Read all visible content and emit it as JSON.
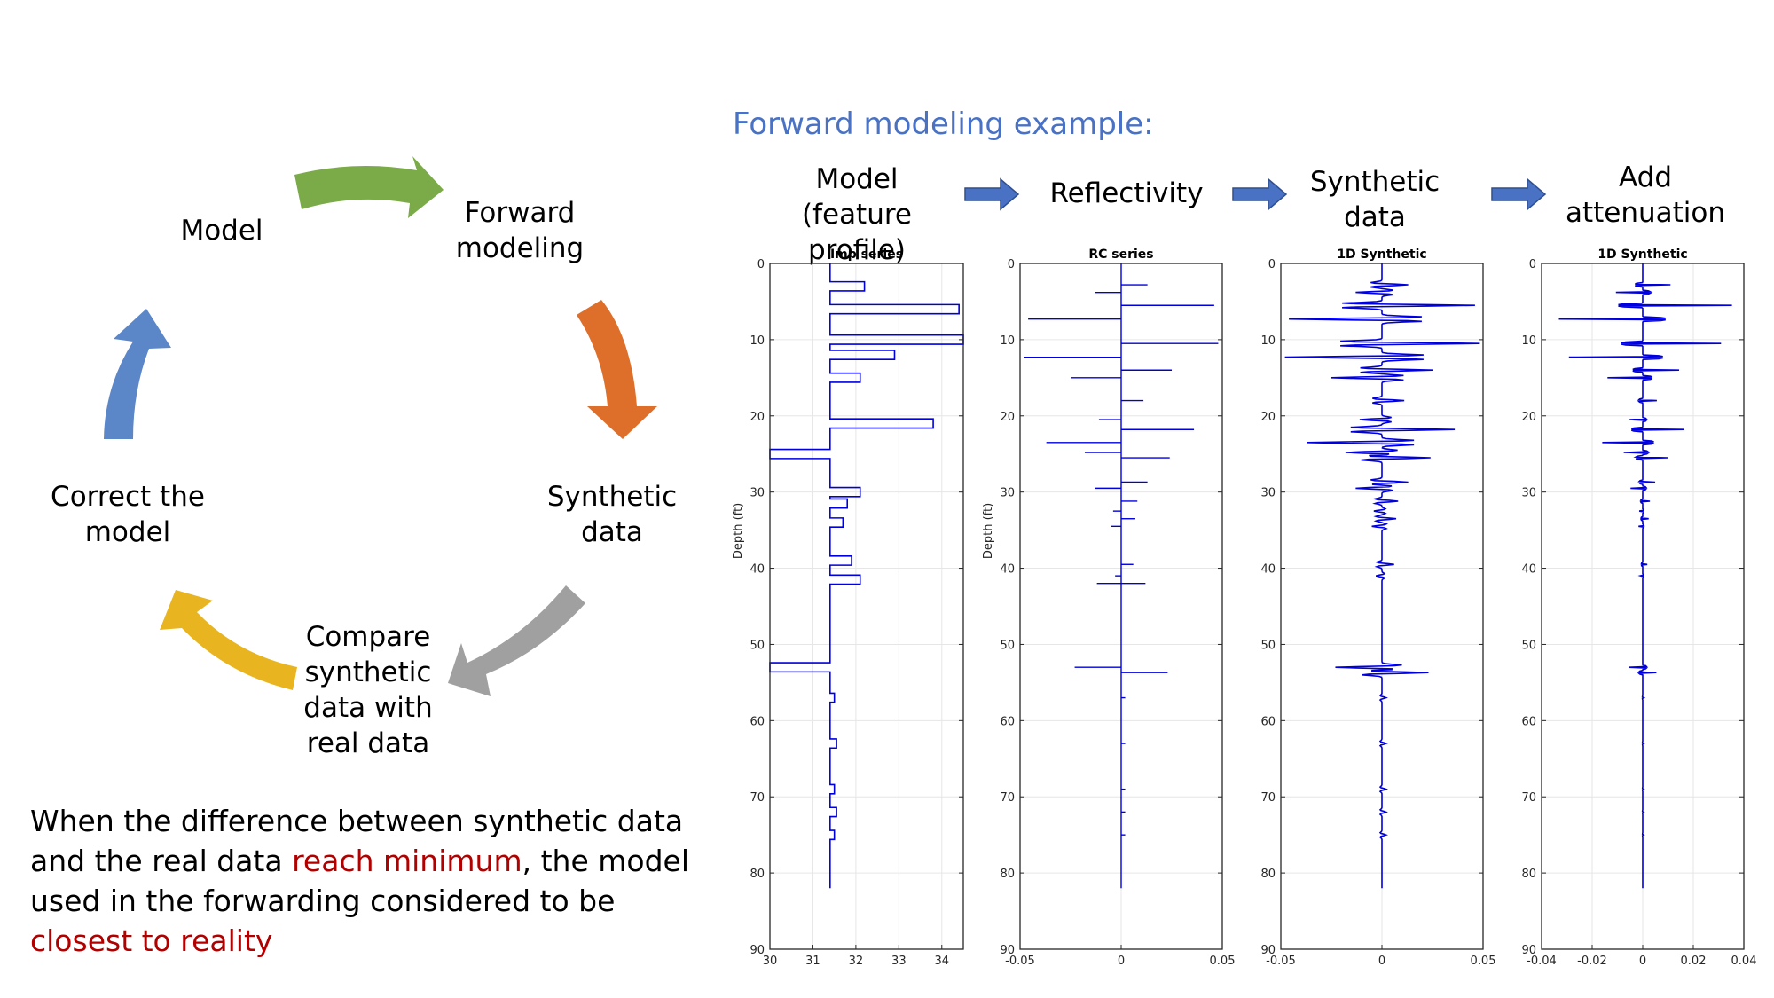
{
  "cycle": {
    "nodes": [
      {
        "id": "model",
        "label": "Model"
      },
      {
        "id": "forward",
        "label": "Forward\nmodeling"
      },
      {
        "id": "synthetic",
        "label": "Synthetic\ndata"
      },
      {
        "id": "compare",
        "label": "Compare\nsynthetic\ndata with\nreal data"
      },
      {
        "id": "correct",
        "label": "Correct the\nmodel"
      }
    ],
    "arrow_colors": {
      "green": "#7aab48",
      "orange": "#dd6f2a",
      "gray": "#a0a0a0",
      "yellow": "#e8b520",
      "blue": "#5b87c8"
    }
  },
  "conclusion": {
    "parts": [
      {
        "text": "When the difference between synthetic data and the real data ",
        "highlight": false
      },
      {
        "text": "reach minimum",
        "highlight": true
      },
      {
        "text": ", the model used in the forwarding considered to be ",
        "highlight": false
      },
      {
        "text": "closest to reality",
        "highlight": true
      }
    ],
    "highlight_color": "#b00000"
  },
  "forward_example": {
    "title": "Forward modeling example:",
    "steps": [
      {
        "label": "Model\n(feature profile)"
      },
      {
        "label": "Reflectivity"
      },
      {
        "label": "Synthetic\ndata"
      },
      {
        "label": "Add\nattenuation"
      }
    ],
    "step_arrow_color": "#4a72c4"
  },
  "chart_data": [
    {
      "type": "line",
      "title": "Imp series",
      "ylabel": "Depth (ft)",
      "xlabel": "",
      "xlim": [
        30,
        34.5
      ],
      "ylim": [
        0,
        90
      ],
      "y_reversed": true,
      "xticks": [
        "30",
        "31",
        "32",
        "33",
        "34"
      ],
      "xtick_values": [
        30,
        31,
        32,
        33,
        34
      ],
      "yticks": [
        "0",
        "10",
        "20",
        "30",
        "40",
        "50",
        "60",
        "70",
        "80",
        "90"
      ],
      "grid": true,
      "series": [
        {
          "style": "step-impedance",
          "color": "#0000dd",
          "baseline": 31.4,
          "events": [
            [
              3,
              32.2
            ],
            [
              6,
              34.4
            ],
            [
              10,
              34.5
            ],
            [
              12,
              32.9
            ],
            [
              15,
              32.1
            ],
            [
              21,
              33.8
            ],
            [
              25,
              30.0
            ],
            [
              30,
              32.1
            ],
            [
              31.5,
              31.8
            ],
            [
              34,
              31.7
            ],
            [
              39,
              31.9
            ],
            [
              41.5,
              32.1
            ],
            [
              53,
              30.0
            ],
            [
              57,
              31.5
            ],
            [
              63,
              31.55
            ],
            [
              69,
              31.5
            ],
            [
              72,
              31.55
            ],
            [
              75,
              31.5
            ]
          ],
          "y_end": 82
        }
      ]
    },
    {
      "type": "line",
      "title": "RC series",
      "ylabel": "Depth (ft)",
      "xlabel": "",
      "xlim": [
        -0.05,
        0.05
      ],
      "ylim": [
        0,
        90
      ],
      "y_reversed": true,
      "xticks": [
        "-0.05",
        "0",
        "0.05"
      ],
      "xtick_values": [
        -0.05,
        0,
        0.05
      ],
      "yticks": [
        "0",
        "10",
        "20",
        "30",
        "40",
        "50",
        "60",
        "70",
        "80",
        "90"
      ],
      "grid": true,
      "series": [
        {
          "style": "spikes",
          "color": "#0000dd",
          "spikes": [
            [
              2.8,
              0.013
            ],
            [
              3.8,
              -0.013
            ],
            [
              5.5,
              0.046
            ],
            [
              7.3,
              -0.046
            ],
            [
              10.5,
              0.048
            ],
            [
              12.3,
              -0.048
            ],
            [
              14,
              0.025
            ],
            [
              15,
              -0.025
            ],
            [
              18,
              0.011
            ],
            [
              20.5,
              -0.011
            ],
            [
              21.8,
              0.036
            ],
            [
              23.5,
              -0.037
            ],
            [
              24.8,
              -0.018
            ],
            [
              25.5,
              0.024
            ],
            [
              28.7,
              0.013
            ],
            [
              29.5,
              -0.013
            ],
            [
              31.2,
              0.008
            ],
            [
              32.5,
              -0.004
            ],
            [
              33.5,
              0.007
            ],
            [
              34.5,
              -0.005
            ],
            [
              39.5,
              0.006
            ],
            [
              41,
              -0.003
            ],
            [
              42,
              -0.012
            ],
            [
              42,
              0.012
            ],
            [
              53,
              -0.023
            ],
            [
              53.7,
              0.023
            ],
            [
              57,
              0.002
            ],
            [
              63,
              0.002
            ],
            [
              69,
              0.002
            ],
            [
              72,
              0.002
            ],
            [
              75,
              0.002
            ]
          ],
          "y_end": 82
        }
      ]
    },
    {
      "type": "line",
      "title": "1D Synthetic",
      "ylabel": "",
      "xlabel": "",
      "xlim": [
        -0.05,
        0.05
      ],
      "ylim": [
        0,
        90
      ],
      "y_reversed": true,
      "xticks": [
        "-0.05",
        "0",
        "0.05"
      ],
      "xtick_values": [
        -0.05,
        0,
        0.05
      ],
      "yticks": [
        "0",
        "10",
        "20",
        "30",
        "40",
        "50",
        "60",
        "70",
        "80",
        "90"
      ],
      "grid": true,
      "series": [
        {
          "style": "wiggle",
          "color": "#0000dd",
          "width": 0.7,
          "spikes": [
            [
              2.8,
              0.013
            ],
            [
              3.8,
              -0.013
            ],
            [
              5.5,
              0.046
            ],
            [
              7.3,
              -0.046
            ],
            [
              10.5,
              0.048
            ],
            [
              12.3,
              -0.048
            ],
            [
              14,
              0.025
            ],
            [
              15,
              -0.025
            ],
            [
              18,
              0.011
            ],
            [
              20.5,
              -0.011
            ],
            [
              21.8,
              0.036
            ],
            [
              23.5,
              -0.037
            ],
            [
              24.8,
              -0.018
            ],
            [
              25.5,
              0.024
            ],
            [
              28.7,
              0.013
            ],
            [
              29.5,
              -0.013
            ],
            [
              31.2,
              0.008
            ],
            [
              32.5,
              -0.004
            ],
            [
              33.5,
              0.007
            ],
            [
              34.5,
              -0.005
            ],
            [
              39.5,
              0.006
            ],
            [
              41,
              -0.003
            ],
            [
              42,
              -0.012
            ],
            [
              42,
              0.012
            ],
            [
              53,
              -0.023
            ],
            [
              53.7,
              0.023
            ],
            [
              57,
              0.002
            ],
            [
              63,
              0.002
            ],
            [
              69,
              0.002
            ],
            [
              72,
              0.002
            ],
            [
              75,
              0.002
            ]
          ],
          "y_end": 82
        }
      ]
    },
    {
      "type": "line",
      "title": "1D Synthetic",
      "ylabel": "",
      "xlabel": "",
      "xlim": [
        -0.04,
        0.04
      ],
      "ylim": [
        0,
        90
      ],
      "y_reversed": true,
      "xticks": [
        "-0.04",
        "-0.02",
        "0",
        "0.02",
        "0.04"
      ],
      "xtick_values": [
        -0.04,
        -0.02,
        0,
        0.02,
        0.04
      ],
      "yticks": [
        "0",
        "10",
        "20",
        "30",
        "40",
        "50",
        "60",
        "70",
        "80",
        "90"
      ],
      "grid": true,
      "series": [
        {
          "style": "wiggle-attenuated",
          "color": "#0000dd",
          "width": 0.35,
          "spikes": [
            [
              2.8,
              0.013
            ],
            [
              3.8,
              -0.013
            ],
            [
              5.5,
              0.046
            ],
            [
              7.3,
              -0.046
            ],
            [
              10.5,
              0.048
            ],
            [
              12.3,
              -0.048
            ],
            [
              14,
              0.025
            ],
            [
              15,
              -0.025
            ],
            [
              18,
              0.011
            ],
            [
              20.5,
              -0.011
            ],
            [
              21.8,
              0.036
            ],
            [
              23.5,
              -0.037
            ],
            [
              24.8,
              -0.018
            ],
            [
              25.5,
              0.024
            ],
            [
              28.7,
              0.013
            ],
            [
              29.5,
              -0.013
            ],
            [
              31.2,
              0.008
            ],
            [
              32.5,
              -0.004
            ],
            [
              33.5,
              0.007
            ],
            [
              34.5,
              -0.005
            ],
            [
              39.5,
              0.006
            ],
            [
              41,
              -0.003
            ],
            [
              42,
              -0.012
            ],
            [
              42,
              0.012
            ],
            [
              53,
              -0.023
            ],
            [
              53.7,
              0.023
            ],
            [
              57,
              0.002
            ],
            [
              63,
              0.002
            ],
            [
              69,
              0.002
            ],
            [
              72,
              0.002
            ],
            [
              75,
              0.002
            ]
          ],
          "y_end": 82
        }
      ]
    }
  ]
}
